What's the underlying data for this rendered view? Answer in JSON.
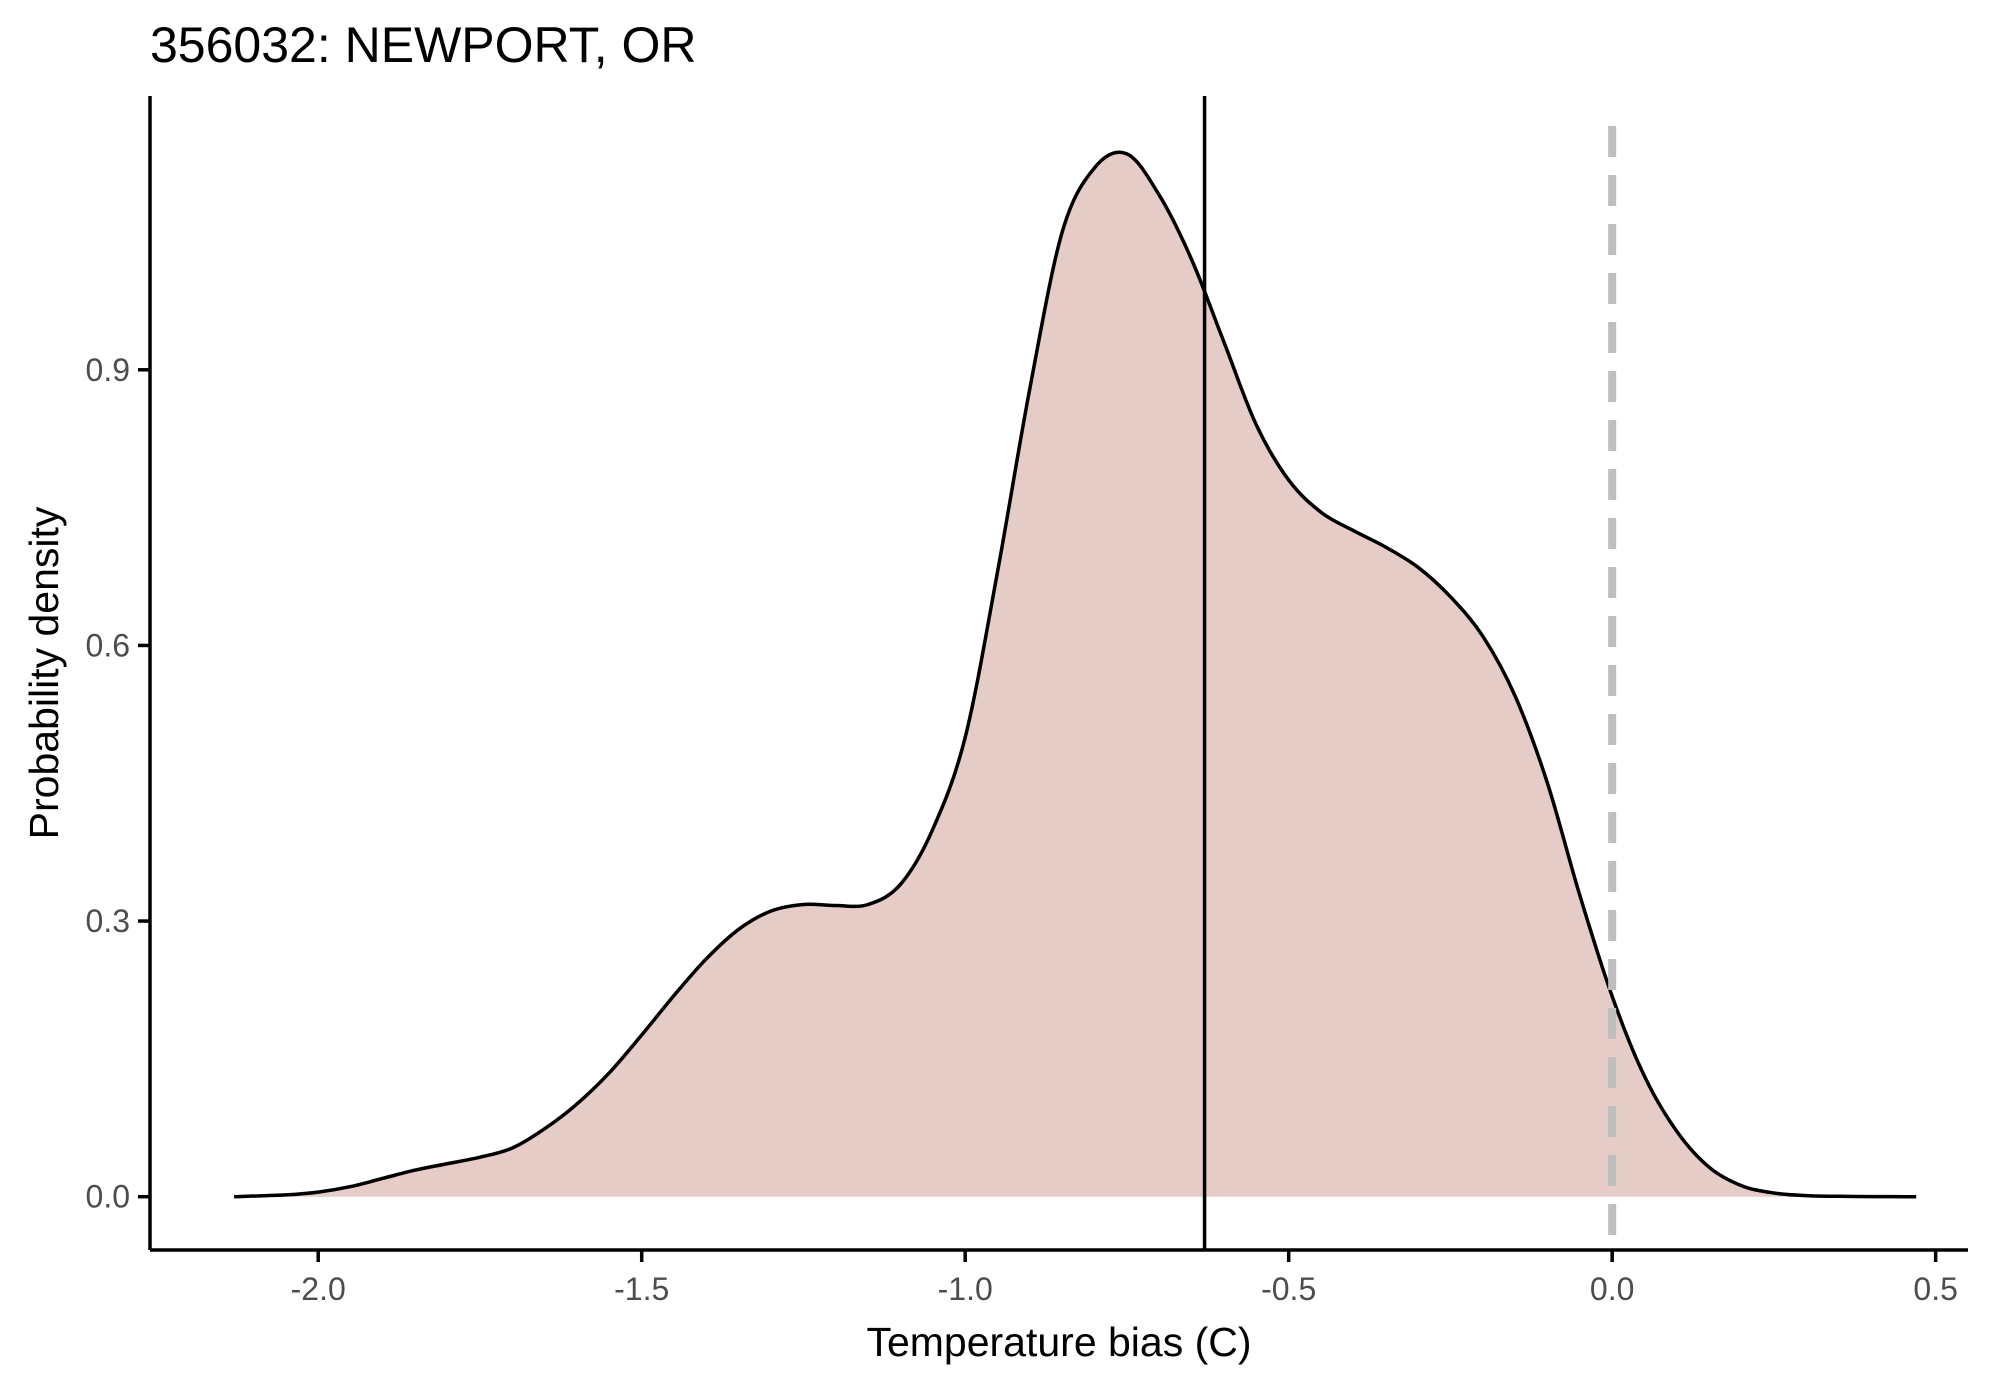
{
  "chart_data": {
    "type": "area",
    "title": "356032: NEWPORT, OR",
    "xlabel": "Temperature bias (C)",
    "ylabel": "Probability density",
    "xlim": [
      -2.26,
      0.55
    ],
    "ylim": [
      -0.058,
      1.198
    ],
    "x_ticks": [
      -2.0,
      -1.5,
      -1.0,
      -0.5,
      0.0,
      0.5
    ],
    "x_tick_labels": [
      "-2.0",
      "-1.5",
      "-1.0",
      "-0.5",
      "0.0",
      "0.5"
    ],
    "y_ticks": [
      0.0,
      0.3,
      0.6,
      0.9
    ],
    "y_tick_labels": [
      "0.0",
      "0.3",
      "0.6",
      "0.9"
    ],
    "grid": false,
    "fill_color": "#e6ccc6",
    "line_color": "#000000",
    "reference_line_color": "#bebebe",
    "series": [
      {
        "x": [
          -2.13,
          -2.05,
          -2.0,
          -1.95,
          -1.9,
          -1.85,
          -1.8,
          -1.75,
          -1.7,
          -1.65,
          -1.6,
          -1.55,
          -1.5,
          -1.45,
          -1.4,
          -1.35,
          -1.3,
          -1.25,
          -1.2,
          -1.15,
          -1.1,
          -1.05,
          -1.0,
          -0.95,
          -0.9,
          -0.85,
          -0.8,
          -0.75,
          -0.7,
          -0.65,
          -0.6,
          -0.55,
          -0.5,
          -0.45,
          -0.4,
          -0.35,
          -0.3,
          -0.25,
          -0.2,
          -0.15,
          -0.1,
          -0.05,
          0.0,
          0.05,
          0.1,
          0.15,
          0.2,
          0.25,
          0.3,
          0.35,
          0.4,
          0.47
        ],
        "y": [
          0.0,
          0.002,
          0.005,
          0.011,
          0.02,
          0.029,
          0.036,
          0.043,
          0.053,
          0.074,
          0.101,
          0.135,
          0.176,
          0.219,
          0.259,
          0.291,
          0.311,
          0.318,
          0.317,
          0.318,
          0.34,
          0.4,
          0.5,
          0.68,
          0.88,
          1.05,
          1.12,
          1.135,
          1.09,
          1.02,
          0.93,
          0.84,
          0.78,
          0.745,
          0.725,
          0.707,
          0.685,
          0.653,
          0.61,
          0.545,
          0.45,
          0.328,
          0.218,
          0.131,
          0.071,
          0.032,
          0.012,
          0.004,
          0.0012,
          0.0004,
          0.0001,
          0.0
        ]
      }
    ],
    "vlines": [
      {
        "x": -0.63,
        "style": "solid"
      },
      {
        "x": 0.0,
        "style": "dashed"
      }
    ]
  }
}
